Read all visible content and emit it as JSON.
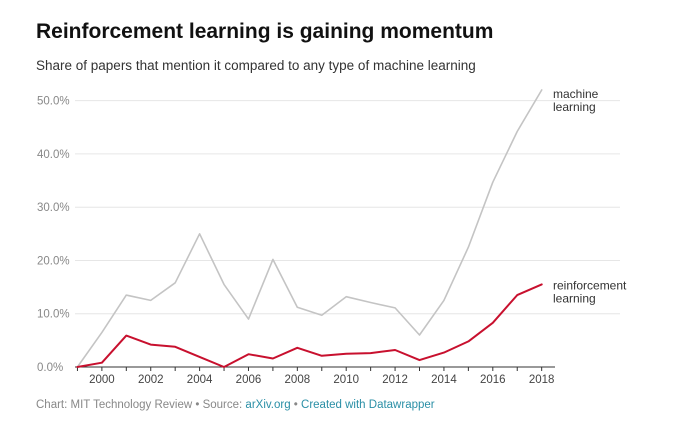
{
  "title": "Reinforcement learning is gaining momentum",
  "subtitle": "Share of papers that mention it compared to any type of machine learning",
  "footer": {
    "prefix": "Chart: MIT Technology Review • Source: ",
    "source_link": "arXiv.org",
    "separator": " • ",
    "credit_link": "Created with Datawrapper"
  },
  "colors": {
    "machine_learning": "#c4c4c4",
    "reinforcement_learning": "#c8102e",
    "grid": "#e6e6e6",
    "axis": "#333333"
  },
  "chart_data": {
    "type": "line",
    "title": "Reinforcement learning is gaining momentum",
    "subtitle": "Share of papers that mention it compared to any type of machine learning",
    "xlabel": "",
    "ylabel": "",
    "x": [
      1999,
      2000,
      2001,
      2002,
      2003,
      2004,
      2005,
      2006,
      2007,
      2008,
      2009,
      2010,
      2011,
      2012,
      2013,
      2014,
      2015,
      2016,
      2017,
      2018
    ],
    "x_tick_values": [
      2000,
      2002,
      2004,
      2006,
      2008,
      2010,
      2012,
      2014,
      2016,
      2018
    ],
    "x_tick_labels": [
      "2000",
      "2002",
      "2004",
      "2006",
      "2008",
      "2010",
      "2012",
      "2014",
      "2016",
      "2018"
    ],
    "xlim": [
      1998.9,
      2018.3
    ],
    "ylim": [
      0,
      52
    ],
    "y_ticks": [
      0,
      10,
      20,
      30,
      40,
      50
    ],
    "y_tick_labels": [
      "0.0%",
      "10.0%",
      "20.0%",
      "30.0%",
      "40.0%",
      "50.0%"
    ],
    "grid": true,
    "series": [
      {
        "name": "machine learning",
        "label_lines": [
          "machine",
          "learning"
        ],
        "color": "#c4c4c4",
        "values": [
          0,
          6.5,
          13.5,
          12.5,
          15.8,
          25,
          15.5,
          9,
          20.2,
          11.2,
          9.7,
          13.2,
          12.1,
          11.1,
          6,
          12.5,
          22.5,
          34.7,
          44.2,
          52
        ]
      },
      {
        "name": "reinforcement learning",
        "label_lines": [
          "reinforcement",
          "learning"
        ],
        "color": "#c8102e",
        "values": [
          0,
          0.8,
          5.9,
          4.2,
          3.8,
          1.9,
          0,
          2.4,
          1.6,
          3.6,
          2.1,
          2.5,
          2.6,
          3.2,
          1.3,
          2.7,
          4.8,
          8.3,
          13.5,
          15.5
        ]
      }
    ]
  }
}
